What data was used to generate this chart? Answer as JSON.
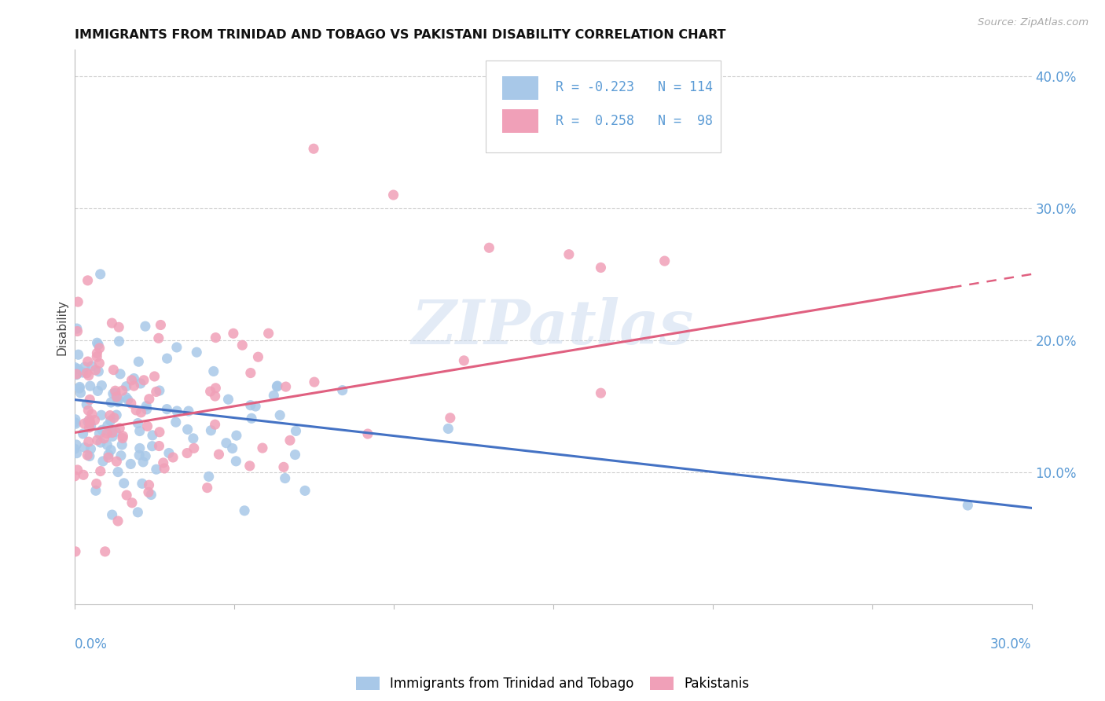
{
  "title": "IMMIGRANTS FROM TRINIDAD AND TOBAGO VS PAKISTANI DISABILITY CORRELATION CHART",
  "source": "Source: ZipAtlas.com",
  "ylabel": "Disability",
  "ytick_labels": [
    "10.0%",
    "20.0%",
    "30.0%",
    "40.0%"
  ],
  "ytick_values": [
    0.1,
    0.2,
    0.3,
    0.4
  ],
  "xlim": [
    0.0,
    0.3
  ],
  "ylim": [
    0.0,
    0.42
  ],
  "color_blue": "#a8c8e8",
  "color_pink": "#f0a0b8",
  "color_blue_line": "#4472c4",
  "color_pink_line": "#e06080",
  "watermark_color": "#c8d8ee",
  "background_color": "#ffffff",
  "grid_color": "#d0d0d0",
  "tick_color": "#5b9bd5",
  "title_fontsize": 11.5,
  "tick_fontsize": 12,
  "ylabel_fontsize": 11
}
